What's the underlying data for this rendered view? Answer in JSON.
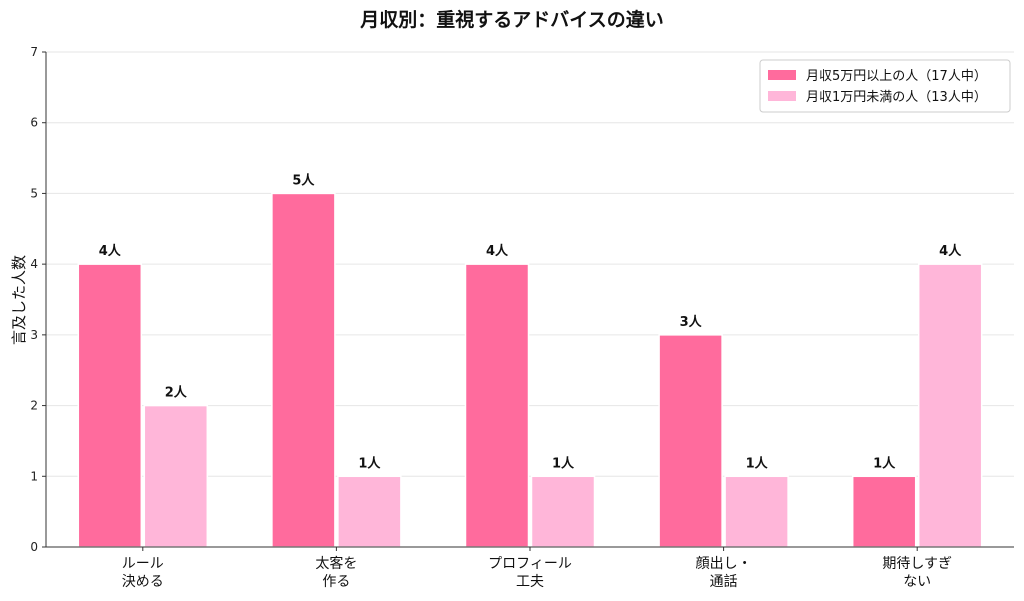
{
  "chart_data": {
    "type": "bar",
    "title": "月収別：重視するアドバイスの違い",
    "xlabel": "",
    "ylabel": "言及した人数",
    "ylim": [
      0,
      7
    ],
    "yticks": [
      0,
      1,
      2,
      3,
      4,
      5,
      6,
      7
    ],
    "grid": "horizontal",
    "legend_position": "top-right",
    "categories": [
      [
        "ルール",
        "決める"
      ],
      [
        "太客を",
        "作る"
      ],
      [
        "プロフィール",
        "工夫"
      ],
      [
        "顔出し・",
        "通話"
      ],
      [
        "期待しすぎ",
        "ない"
      ]
    ],
    "label_suffix": "人",
    "series": [
      {
        "name": "月収5万円以上の人（17人中）",
        "values": [
          4,
          5,
          4,
          3,
          1
        ],
        "color": "#ff6b9d"
      },
      {
        "name": "月収1万円未満の人（13人中）",
        "values": [
          2,
          1,
          1,
          1,
          4
        ],
        "color": "#ffb6d9"
      }
    ]
  }
}
